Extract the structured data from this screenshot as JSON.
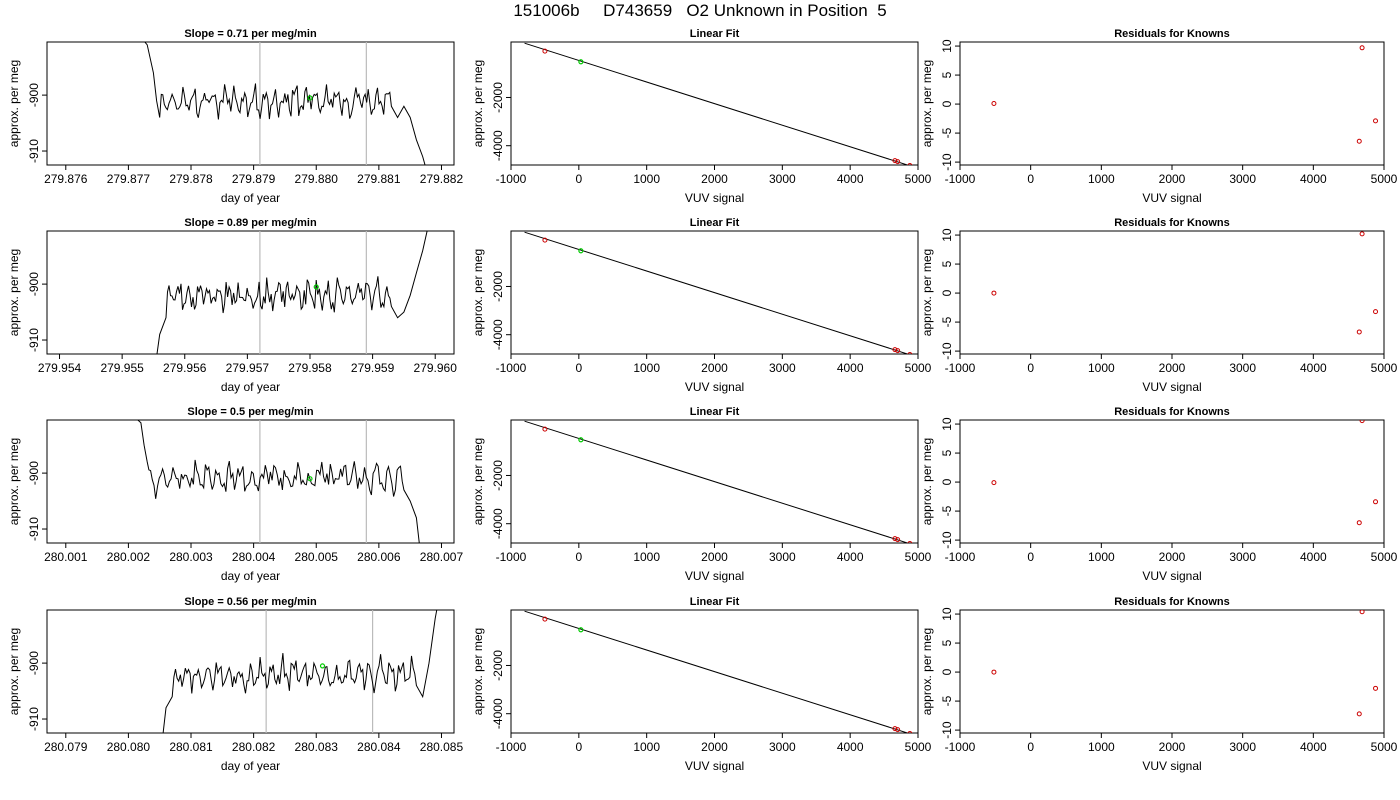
{
  "figure": {
    "title": "151006b     D743659   O2 Unknown in Position  5"
  },
  "colors": {
    "series": "#000000",
    "marker": "#00cc00",
    "known": "#cc0000",
    "vline": "#bbbbbb",
    "axis": "#000000"
  },
  "chart_data": [
    {
      "panel": "row1-time",
      "type": "line",
      "title": "Slope =  0.71  per meg/min",
      "xlabel": "day of year",
      "ylabel": "approx. per meg",
      "xlim": [
        279.8757,
        279.8822
      ],
      "ylim": [
        -912.5,
        -890.5
      ],
      "xticks": [
        279.876,
        279.877,
        279.878,
        279.879,
        279.88,
        279.881,
        279.882
      ],
      "xtick_labels": [
        "279.876",
        "279.877",
        "279.878",
        "279.879",
        "279.880",
        "279.881",
        "279.882"
      ],
      "yticks": [
        -900,
        -910
      ],
      "ytick_labels": [
        "-900",
        "-910"
      ],
      "vlines": [
        279.8791,
        279.8808
      ],
      "marker": {
        "x": 279.8799,
        "y": -900.5
      },
      "trace": {
        "x_start": 279.877,
        "x_end": 279.8817,
        "head": [
          [
            279.877,
            -887
          ],
          [
            279.8773,
            -891
          ],
          [
            279.8774,
            -896
          ],
          [
            279.87745,
            -901
          ],
          [
            279.8775,
            -904
          ]
        ],
        "tail": [
          [
            279.8812,
            -902
          ],
          [
            279.8813,
            -904
          ],
          [
            279.8814,
            -902
          ],
          [
            279.8815,
            -904
          ],
          [
            279.8816,
            -908
          ],
          [
            279.8817,
            -911
          ],
          [
            279.88175,
            -913
          ]
        ],
        "center": -901,
        "amp": 2.6,
        "seed": 11
      }
    },
    {
      "panel": "row2-time",
      "type": "line",
      "title": "Slope =  0.89  per meg/min",
      "xlabel": "day of year",
      "ylabel": "approx. per meg",
      "xlim": [
        279.9538,
        279.9603
      ],
      "ylim": [
        -912.5,
        -890.5
      ],
      "xticks": [
        279.954,
        279.955,
        279.956,
        279.957,
        279.958,
        279.959,
        279.96
      ],
      "xtick_labels": [
        "279.954",
        "279.955",
        "279.956",
        "279.957",
        "279.958",
        "279.959",
        "279.960"
      ],
      "yticks": [
        -900,
        -910
      ],
      "ytick_labels": [
        "-900",
        "-910"
      ],
      "vlines": [
        279.9572,
        279.9589
      ],
      "marker": {
        "x": 279.9581,
        "y": -900.5
      },
      "trace": {
        "x_start": 279.9556,
        "x_end": 279.9599,
        "head": [
          [
            279.95555,
            -913
          ],
          [
            279.9556,
            -909
          ],
          [
            279.9557,
            -906
          ]
        ],
        "tail": [
          [
            279.9593,
            -904
          ],
          [
            279.9594,
            -906
          ],
          [
            279.9595,
            -905
          ],
          [
            279.9596,
            -902
          ],
          [
            279.9597,
            -898
          ],
          [
            279.9598,
            -894
          ],
          [
            279.9599,
            -889
          ]
        ],
        "center": -902,
        "amp": 2.6,
        "seed": 23
      }
    },
    {
      "panel": "row3-time",
      "type": "line",
      "title": "Slope =  0.5  per meg/min",
      "xlabel": "day of year",
      "ylabel": "approx. per meg",
      "xlim": [
        280.0007,
        280.0072
      ],
      "ylim": [
        -912.5,
        -890.5
      ],
      "xticks": [
        280.001,
        280.002,
        280.003,
        280.004,
        280.005,
        280.006,
        280.007
      ],
      "xtick_labels": [
        "280.001",
        "280.002",
        "280.003",
        "280.004",
        "280.005",
        "280.006",
        "280.007"
      ],
      "yticks": [
        -900,
        -910
      ],
      "ytick_labels": [
        "-900",
        "-910"
      ],
      "vlines": [
        280.0041,
        280.0058
      ],
      "marker": {
        "x": 280.0049,
        "y": -901
      },
      "trace": {
        "x_start": 280.0021,
        "x_end": 280.0066,
        "head": [
          [
            280.0021,
            -890
          ],
          [
            280.0022,
            -891
          ],
          [
            280.00225,
            -895
          ],
          [
            280.0023,
            -898
          ]
        ],
        "tail": [
          [
            280.0064,
            -903
          ],
          [
            280.0065,
            -905
          ],
          [
            280.0066,
            -908
          ],
          [
            280.00665,
            -913
          ]
        ],
        "center": -900.8,
        "amp": 2.4,
        "seed": 37
      }
    },
    {
      "panel": "row4-time",
      "type": "line",
      "title": "Slope =  0.56  per meg/min",
      "xlabel": "day of year",
      "ylabel": "approx. per meg",
      "xlim": [
        280.0787,
        280.0852
      ],
      "ylim": [
        -912.5,
        -890.5
      ],
      "xticks": [
        280.079,
        280.08,
        280.081,
        280.082,
        280.083,
        280.084,
        280.085
      ],
      "xtick_labels": [
        "280.079",
        "280.080",
        "280.081",
        "280.082",
        "280.083",
        "280.084",
        "280.085"
      ],
      "yticks": [
        -900,
        -910
      ],
      "ytick_labels": [
        "-900",
        "-910"
      ],
      "vlines": [
        280.0822,
        280.0839
      ],
      "marker": {
        "x": 280.0831,
        "y": -900.5
      },
      "trace": {
        "x_start": 280.0806,
        "x_end": 280.0849,
        "head": [
          [
            280.08055,
            -913
          ],
          [
            280.0806,
            -908
          ],
          [
            280.0807,
            -906
          ]
        ],
        "tail": [
          [
            280.0846,
            -904
          ],
          [
            280.0847,
            -906
          ],
          [
            280.0848,
            -900
          ],
          [
            280.0849,
            -892
          ],
          [
            280.08495,
            -889
          ]
        ],
        "center": -902,
        "amp": 2.5,
        "seed": 53
      }
    },
    {
      "panel": "row1-fit",
      "type": "scatter",
      "title": "Linear Fit",
      "xlabel": "VUV signal",
      "ylabel": "approx. per meg",
      "xlim": [
        -1000,
        5000
      ],
      "ylim": [
        -4800,
        300
      ],
      "xticks": [
        -1000,
        0,
        1000,
        2000,
        3000,
        4000,
        5000
      ],
      "yticks": [
        -2000,
        -4000
      ],
      "fit_line": [
        [
          -800,
          250
        ],
        [
          4900,
          -4850
        ]
      ],
      "knowns": [
        [
          -500,
          -80
        ],
        [
          4660,
          -4620
        ],
        [
          4700,
          -4660
        ],
        [
          4880,
          -4820
        ]
      ],
      "unknown": [
        [
          30,
          -520
        ]
      ]
    },
    {
      "panel": "row2-fit",
      "type": "scatter",
      "title": "Linear Fit",
      "xlabel": "VUV signal",
      "ylabel": "approx. per meg",
      "xlim": [
        -1000,
        5000
      ],
      "ylim": [
        -4800,
        300
      ],
      "xticks": [
        -1000,
        0,
        1000,
        2000,
        3000,
        4000,
        5000
      ],
      "yticks": [
        -2000,
        -4000
      ],
      "fit_line": [
        [
          -800,
          250
        ],
        [
          4900,
          -4850
        ]
      ],
      "knowns": [
        [
          -500,
          -80
        ],
        [
          4660,
          -4620
        ],
        [
          4700,
          -4660
        ],
        [
          4880,
          -4820
        ]
      ],
      "unknown": [
        [
          30,
          -520
        ]
      ]
    },
    {
      "panel": "row3-fit",
      "type": "scatter",
      "title": "Linear Fit",
      "xlabel": "VUV signal",
      "ylabel": "approx. per meg",
      "xlim": [
        -1000,
        5000
      ],
      "ylim": [
        -4800,
        300
      ],
      "xticks": [
        -1000,
        0,
        1000,
        2000,
        3000,
        4000,
        5000
      ],
      "yticks": [
        -2000,
        -4000
      ],
      "fit_line": [
        [
          -800,
          250
        ],
        [
          4900,
          -4850
        ]
      ],
      "knowns": [
        [
          -500,
          -80
        ],
        [
          4660,
          -4620
        ],
        [
          4700,
          -4660
        ],
        [
          4880,
          -4820
        ]
      ],
      "unknown": [
        [
          30,
          -520
        ]
      ]
    },
    {
      "panel": "row4-fit",
      "type": "scatter",
      "title": "Linear Fit",
      "xlabel": "VUV signal",
      "ylabel": "approx. per meg",
      "xlim": [
        -1000,
        5000
      ],
      "ylim": [
        -4800,
        300
      ],
      "xticks": [
        -1000,
        0,
        1000,
        2000,
        3000,
        4000,
        5000
      ],
      "yticks": [
        -2000,
        -4000
      ],
      "fit_line": [
        [
          -800,
          250
        ],
        [
          4900,
          -4850
        ]
      ],
      "knowns": [
        [
          -500,
          -80
        ],
        [
          4660,
          -4620
        ],
        [
          4700,
          -4660
        ],
        [
          4880,
          -4820
        ]
      ],
      "unknown": [
        [
          30,
          -520
        ]
      ]
    },
    {
      "panel": "row1-resid",
      "type": "scatter",
      "title": "Residuals for Knowns",
      "xlabel": "VUV signal",
      "ylabel": "approx. per meg",
      "xlim": [
        -1000,
        5000
      ],
      "ylim": [
        -10.5,
        10.7
      ],
      "xticks": [
        -1000,
        0,
        1000,
        2000,
        3000,
        4000,
        5000
      ],
      "yticks": [
        10,
        5,
        0,
        -5,
        -10
      ],
      "points": [
        [
          -520,
          0.1
        ],
        [
          4650,
          -6.4
        ],
        [
          4690,
          9.7
        ],
        [
          4880,
          -2.9
        ]
      ]
    },
    {
      "panel": "row2-resid",
      "type": "scatter",
      "title": "Residuals for Knowns",
      "xlabel": "VUV signal",
      "ylabel": "approx. per meg",
      "xlim": [
        -1000,
        5000
      ],
      "ylim": [
        -10.5,
        10.7
      ],
      "xticks": [
        -1000,
        0,
        1000,
        2000,
        3000,
        4000,
        5000
      ],
      "yticks": [
        10,
        5,
        0,
        -5,
        -10
      ],
      "points": [
        [
          -520,
          0.0
        ],
        [
          4650,
          -6.7
        ],
        [
          4690,
          10.2
        ],
        [
          4880,
          -3.2
        ]
      ]
    },
    {
      "panel": "row3-resid",
      "type": "scatter",
      "title": "Residuals for Knowns",
      "xlabel": "VUV signal",
      "ylabel": "approx. per meg",
      "xlim": [
        -1000,
        5000
      ],
      "ylim": [
        -10.5,
        10.7
      ],
      "xticks": [
        -1000,
        0,
        1000,
        2000,
        3000,
        4000,
        5000
      ],
      "yticks": [
        10,
        5,
        0,
        -5,
        -10
      ],
      "points": [
        [
          -520,
          -0.1
        ],
        [
          4650,
          -7.0
        ],
        [
          4690,
          10.6
        ],
        [
          4880,
          -3.4
        ]
      ]
    },
    {
      "panel": "row4-resid",
      "type": "scatter",
      "title": "Residuals for Knowns",
      "xlabel": "VUV signal",
      "ylabel": "approx. per meg",
      "xlim": [
        -1000,
        5000
      ],
      "ylim": [
        -10.5,
        10.7
      ],
      "xticks": [
        -1000,
        0,
        1000,
        2000,
        3000,
        4000,
        5000
      ],
      "yticks": [
        10,
        5,
        0,
        -5,
        -10
      ],
      "points": [
        [
          -520,
          0.0
        ],
        [
          4650,
          -7.2
        ],
        [
          4690,
          10.4
        ],
        [
          4880,
          -2.8
        ]
      ]
    }
  ]
}
